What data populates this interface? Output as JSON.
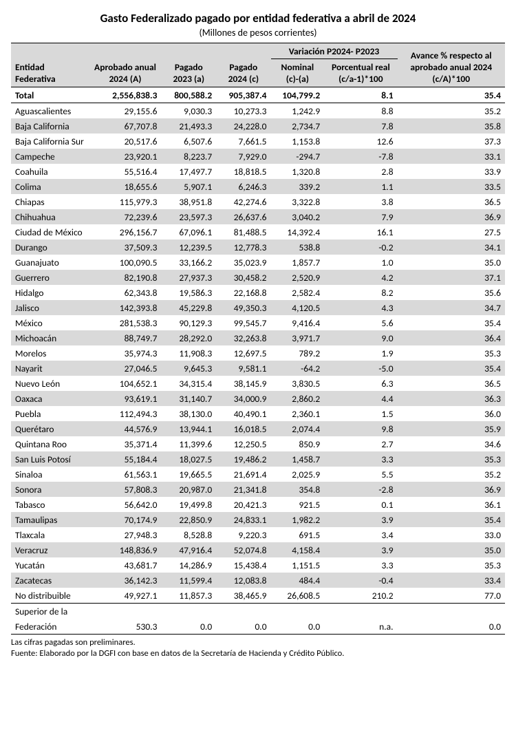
{
  "title": "Gasto Federalizado pagado por entidad federativa a abril de 2024",
  "subtitle": "(Millones de pesos corrientes)",
  "headers": {
    "entity": "Entidad Federativa",
    "approved": "Aprobado anual 2024 (A)",
    "paid2023": "Pagado 2023 (a)",
    "paid2024": "Pagado 2024 (c)",
    "variation_group": "Variación P2024- P2023",
    "nominal": "Nominal (c)-(a)",
    "real": "Porcentual real (c/a-1)*100",
    "advance": "Avance % respecto al aprobado anual 2024 (c/A)*100"
  },
  "total": {
    "name": "Total",
    "A": "2,556,838.3",
    "p23": "800,588.2",
    "p24": "905,387.4",
    "nom": "104,799.2",
    "real": "8.1",
    "adv": "35.4"
  },
  "rows": [
    {
      "name": "Aguascalientes",
      "A": "29,155.6",
      "p23": "9,030.3",
      "p24": "10,273.3",
      "nom": "1,242.9",
      "real": "8.8",
      "adv": "35.2"
    },
    {
      "name": "Baja California",
      "A": "67,707.8",
      "p23": "21,493.3",
      "p24": "24,228.0",
      "nom": "2,734.7",
      "real": "7.8",
      "adv": "35.8"
    },
    {
      "name": "Baja California Sur",
      "A": "20,517.6",
      "p23": "6,507.6",
      "p24": "7,661.5",
      "nom": "1,153.8",
      "real": "12.6",
      "adv": "37.3"
    },
    {
      "name": "Campeche",
      "A": "23,920.1",
      "p23": "8,223.7",
      "p24": "7,929.0",
      "nom": "-294.7",
      "real": "-7.8",
      "adv": "33.1"
    },
    {
      "name": "Coahuila",
      "A": "55,516.4",
      "p23": "17,497.7",
      "p24": "18,818.5",
      "nom": "1,320.8",
      "real": "2.8",
      "adv": "33.9"
    },
    {
      "name": "Colima",
      "A": "18,655.6",
      "p23": "5,907.1",
      "p24": "6,246.3",
      "nom": "339.2",
      "real": "1.1",
      "adv": "33.5"
    },
    {
      "name": "Chiapas",
      "A": "115,979.3",
      "p23": "38,951.8",
      "p24": "42,274.6",
      "nom": "3,322.8",
      "real": "3.8",
      "adv": "36.5"
    },
    {
      "name": "Chihuahua",
      "A": "72,239.6",
      "p23": "23,597.3",
      "p24": "26,637.6",
      "nom": "3,040.2",
      "real": "7.9",
      "adv": "36.9"
    },
    {
      "name": "Ciudad de México",
      "A": "296,156.7",
      "p23": "67,096.1",
      "p24": "81,488.5",
      "nom": "14,392.4",
      "real": "16.1",
      "adv": "27.5"
    },
    {
      "name": "Durango",
      "A": "37,509.3",
      "p23": "12,239.5",
      "p24": "12,778.3",
      "nom": "538.8",
      "real": "-0.2",
      "adv": "34.1"
    },
    {
      "name": "Guanajuato",
      "A": "100,090.5",
      "p23": "33,166.2",
      "p24": "35,023.9",
      "nom": "1,857.7",
      "real": "1.0",
      "adv": "35.0"
    },
    {
      "name": "Guerrero",
      "A": "82,190.8",
      "p23": "27,937.3",
      "p24": "30,458.2",
      "nom": "2,520.9",
      "real": "4.2",
      "adv": "37.1"
    },
    {
      "name": "Hidalgo",
      "A": "62,343.8",
      "p23": "19,586.3",
      "p24": "22,168.8",
      "nom": "2,582.4",
      "real": "8.2",
      "adv": "35.6"
    },
    {
      "name": "Jalisco",
      "A": "142,393.8",
      "p23": "45,229.8",
      "p24": "49,350.3",
      "nom": "4,120.5",
      "real": "4.3",
      "adv": "34.7"
    },
    {
      "name": "México",
      "A": "281,538.3",
      "p23": "90,129.3",
      "p24": "99,545.7",
      "nom": "9,416.4",
      "real": "5.6",
      "adv": "35.4"
    },
    {
      "name": "Michoacán",
      "A": "88,749.7",
      "p23": "28,292.0",
      "p24": "32,263.8",
      "nom": "3,971.7",
      "real": "9.0",
      "adv": "36.4"
    },
    {
      "name": "Morelos",
      "A": "35,974.3",
      "p23": "11,908.3",
      "p24": "12,697.5",
      "nom": "789.2",
      "real": "1.9",
      "adv": "35.3"
    },
    {
      "name": "Nayarit",
      "A": "27,046.5",
      "p23": "9,645.3",
      "p24": "9,581.1",
      "nom": "-64.2",
      "real": "-5.0",
      "adv": "35.4"
    },
    {
      "name": "Nuevo León",
      "A": "104,652.1",
      "p23": "34,315.4",
      "p24": "38,145.9",
      "nom": "3,830.5",
      "real": "6.3",
      "adv": "36.5"
    },
    {
      "name": "Oaxaca",
      "A": "93,619.1",
      "p23": "31,140.7",
      "p24": "34,000.9",
      "nom": "2,860.2",
      "real": "4.4",
      "adv": "36.3"
    },
    {
      "name": "Puebla",
      "A": "112,494.3",
      "p23": "38,130.0",
      "p24": "40,490.1",
      "nom": "2,360.1",
      "real": "1.5",
      "adv": "36.0"
    },
    {
      "name": "Querétaro",
      "A": "44,576.9",
      "p23": "13,944.1",
      "p24": "16,018.5",
      "nom": "2,074.4",
      "real": "9.8",
      "adv": "35.9"
    },
    {
      "name": "Quintana Roo",
      "A": "35,371.4",
      "p23": "11,399.6",
      "p24": "12,250.5",
      "nom": "850.9",
      "real": "2.7",
      "adv": "34.6"
    },
    {
      "name": "San Luis Potosí",
      "A": "55,184.4",
      "p23": "18,027.5",
      "p24": "19,486.2",
      "nom": "1,458.7",
      "real": "3.3",
      "adv": "35.3"
    },
    {
      "name": "Sinaloa",
      "A": "61,563.1",
      "p23": "19,665.5",
      "p24": "21,691.4",
      "nom": "2,025.9",
      "real": "5.5",
      "adv": "35.2"
    },
    {
      "name": "Sonora",
      "A": "57,808.3",
      "p23": "20,987.0",
      "p24": "21,341.8",
      "nom": "354.8",
      "real": "-2.8",
      "adv": "36.9"
    },
    {
      "name": "Tabasco",
      "A": "56,642.0",
      "p23": "19,499.8",
      "p24": "20,421.3",
      "nom": "921.5",
      "real": "0.1",
      "adv": "36.1"
    },
    {
      "name": "Tamaulipas",
      "A": "70,174.9",
      "p23": "22,850.9",
      "p24": "24,833.1",
      "nom": "1,982.2",
      "real": "3.9",
      "adv": "35.4"
    },
    {
      "name": "Tlaxcala",
      "A": "27,948.3",
      "p23": "8,528.8",
      "p24": "9,220.3",
      "nom": "691.5",
      "real": "3.4",
      "adv": "33.0"
    },
    {
      "name": "Veracruz",
      "A": "148,836.9",
      "p23": "47,916.4",
      "p24": "52,074.8",
      "nom": "4,158.4",
      "real": "3.9",
      "adv": "35.0"
    },
    {
      "name": "Yucatán",
      "A": "43,681.7",
      "p23": "14,286.9",
      "p24": "15,438.4",
      "nom": "1,151.5",
      "real": "3.3",
      "adv": "35.3"
    },
    {
      "name": "Zacatecas",
      "A": "36,142.3",
      "p23": "11,599.4",
      "p24": "12,083.8",
      "nom": "484.4",
      "real": "-0.4",
      "adv": "33.4"
    },
    {
      "name": "No distribuible",
      "A": "49,927.1",
      "p23": "11,857.3",
      "p24": "38,465.9",
      "nom": "26,608.5",
      "real": "210.2",
      "adv": "77.0"
    }
  ],
  "superior": {
    "line1": "Superior de la",
    "line2": "Federación",
    "A": "530.3",
    "p23": "0.0",
    "p24": "0.0",
    "nom": "0.0",
    "real": "n.a.",
    "adv": "0.0"
  },
  "footnotes": {
    "l1": "Las cifras pagadas son preliminares.",
    "l2": "Fuente:  Elaborado por la DGFI con base en datos de la Secretaría de Hacienda y Crédito Público."
  },
  "stripe_indices": [
    2,
    4,
    6,
    8,
    10,
    12,
    14,
    16,
    18,
    20,
    22,
    24,
    26,
    28,
    30,
    32
  ]
}
